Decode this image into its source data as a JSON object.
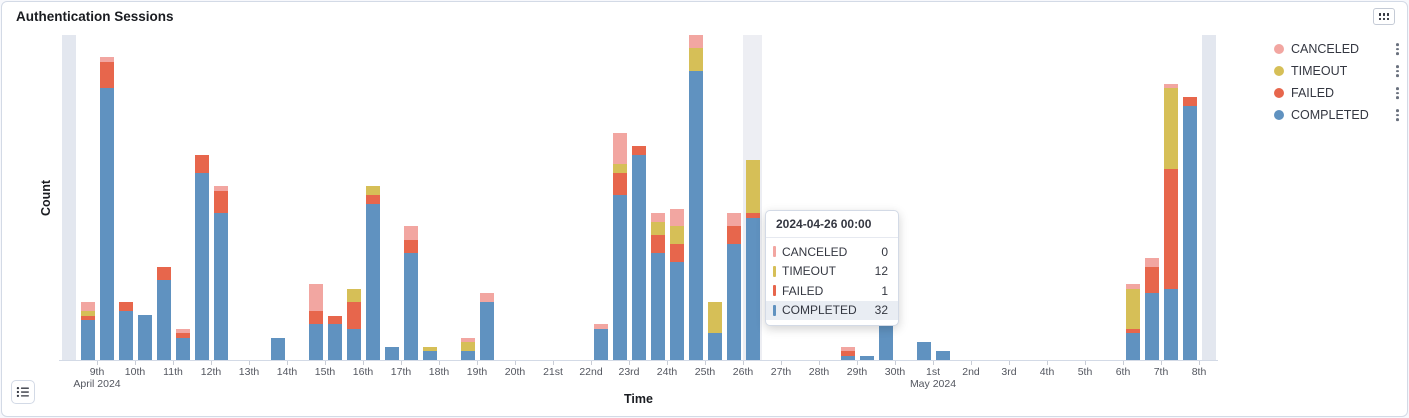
{
  "panel": {
    "title": "Authentication Sessions"
  },
  "chart_data": {
    "type": "bar",
    "stacked": true,
    "title": "Authentication Sessions",
    "xlabel": "Time",
    "ylabel": "Count",
    "ylim": [
      0,
      73
    ],
    "x_bucket_interval": "12h",
    "grid": false,
    "legend_position": "right",
    "stack_order": [
      "COMPLETED",
      "FAILED",
      "TIMEOUT",
      "CANCELED"
    ],
    "colors": {
      "COMPLETED": "#6092C0",
      "FAILED": "#E7664C",
      "TIMEOUT": "#D6BF57",
      "CANCELED": "#F2A6A1",
      "PARTIAL": "#E3E7EF"
    },
    "ticks": [
      {
        "label": "9th",
        "i": 2,
        "sub": "April 2024"
      },
      {
        "label": "10th",
        "i": 4
      },
      {
        "label": "11th",
        "i": 6
      },
      {
        "label": "12th",
        "i": 8
      },
      {
        "label": "13th",
        "i": 10
      },
      {
        "label": "14th",
        "i": 12
      },
      {
        "label": "15th",
        "i": 14
      },
      {
        "label": "16th",
        "i": 16
      },
      {
        "label": "17th",
        "i": 18
      },
      {
        "label": "18th",
        "i": 20
      },
      {
        "label": "19th",
        "i": 22
      },
      {
        "label": "20th",
        "i": 24
      },
      {
        "label": "21st",
        "i": 26
      },
      {
        "label": "22nd",
        "i": 28
      },
      {
        "label": "23rd",
        "i": 30
      },
      {
        "label": "24th",
        "i": 32
      },
      {
        "label": "25th",
        "i": 34
      },
      {
        "label": "26th",
        "i": 36
      },
      {
        "label": "27th",
        "i": 38
      },
      {
        "label": "28th",
        "i": 40
      },
      {
        "label": "29th",
        "i": 42
      },
      {
        "label": "30th",
        "i": 44
      },
      {
        "label": "1st",
        "i": 46,
        "sub": "May 2024"
      },
      {
        "label": "2nd",
        "i": 48
      },
      {
        "label": "3rd",
        "i": 50
      },
      {
        "label": "4th",
        "i": 52
      },
      {
        "label": "5th",
        "i": 54
      },
      {
        "label": "6th",
        "i": 56
      },
      {
        "label": "7th",
        "i": 58
      },
      {
        "label": "8th",
        "i": 60
      }
    ],
    "bars": [
      {
        "b": 0,
        "partial": 73
      },
      {
        "b": 1,
        "v": {
          "COMPLETED": 9,
          "FAILED": 1,
          "TIMEOUT": 1,
          "CANCELED": 2
        }
      },
      {
        "b": 2,
        "v": {
          "COMPLETED": 61,
          "FAILED": 6,
          "CANCELED": 1
        }
      },
      {
        "b": 3,
        "v": {
          "COMPLETED": 11,
          "FAILED": 2
        }
      },
      {
        "b": 4,
        "v": {
          "COMPLETED": 10
        }
      },
      {
        "b": 5,
        "v": {
          "COMPLETED": 18,
          "FAILED": 3
        }
      },
      {
        "b": 6,
        "v": {
          "COMPLETED": 5,
          "FAILED": 1,
          "CANCELED": 1
        }
      },
      {
        "b": 7,
        "v": {
          "COMPLETED": 42,
          "FAILED": 4
        }
      },
      {
        "b": 8,
        "v": {
          "COMPLETED": 33,
          "FAILED": 5,
          "CANCELED": 1
        }
      },
      {
        "b": 11,
        "v": {
          "COMPLETED": 5
        }
      },
      {
        "b": 13,
        "v": {
          "COMPLETED": 8,
          "FAILED": 3,
          "CANCELED": 6
        }
      },
      {
        "b": 14,
        "v": {
          "COMPLETED": 8,
          "FAILED": 2
        }
      },
      {
        "b": 15,
        "v": {
          "COMPLETED": 7,
          "FAILED": 6,
          "TIMEOUT": 3
        }
      },
      {
        "b": 16,
        "v": {
          "COMPLETED": 35,
          "FAILED": 2,
          "TIMEOUT": 2
        }
      },
      {
        "b": 17,
        "v": {
          "COMPLETED": 3
        }
      },
      {
        "b": 18,
        "v": {
          "COMPLETED": 24,
          "FAILED": 3,
          "CANCELED": 3
        }
      },
      {
        "b": 19,
        "v": {
          "COMPLETED": 2,
          "TIMEOUT": 1
        }
      },
      {
        "b": 21,
        "v": {
          "COMPLETED": 2,
          "TIMEOUT": 2,
          "CANCELED": 1
        }
      },
      {
        "b": 22,
        "v": {
          "COMPLETED": 13,
          "CANCELED": 2
        }
      },
      {
        "b": 28,
        "v": {
          "COMPLETED": 7,
          "CANCELED": 1
        }
      },
      {
        "b": 29,
        "v": {
          "COMPLETED": 37,
          "FAILED": 5,
          "TIMEOUT": 2,
          "CANCELED": 7
        }
      },
      {
        "b": 30,
        "v": {
          "COMPLETED": 46,
          "FAILED": 2
        }
      },
      {
        "b": 31,
        "v": {
          "COMPLETED": 24,
          "FAILED": 4,
          "TIMEOUT": 3,
          "CANCELED": 2
        }
      },
      {
        "b": 32,
        "v": {
          "COMPLETED": 22,
          "FAILED": 4,
          "TIMEOUT": 4,
          "CANCELED": 4
        }
      },
      {
        "b": 33,
        "v": {
          "COMPLETED": 65,
          "TIMEOUT": 5,
          "CANCELED": 3
        }
      },
      {
        "b": 34,
        "v": {
          "COMPLETED": 6,
          "TIMEOUT": 7
        }
      },
      {
        "b": 35,
        "v": {
          "COMPLETED": 26,
          "FAILED": 4,
          "CANCELED": 3
        }
      },
      {
        "b": 36,
        "v": {
          "COMPLETED": 32,
          "FAILED": 1,
          "TIMEOUT": 12,
          "CANCELED": 0
        },
        "hovered": true
      },
      {
        "b": 41,
        "v": {
          "COMPLETED": 1,
          "FAILED": 1,
          "CANCELED": 1
        }
      },
      {
        "b": 42,
        "v": {
          "COMPLETED": 1
        }
      },
      {
        "b": 43,
        "v": {
          "COMPLETED": 9,
          "FAILED": 1
        }
      },
      {
        "b": 45,
        "v": {
          "COMPLETED": 4
        }
      },
      {
        "b": 46,
        "v": {
          "COMPLETED": 2
        }
      },
      {
        "b": 56,
        "v": {
          "COMPLETED": 6,
          "FAILED": 1,
          "TIMEOUT": 9,
          "CANCELED": 1
        }
      },
      {
        "b": 57,
        "v": {
          "COMPLETED": 15,
          "FAILED": 6,
          "CANCELED": 2
        }
      },
      {
        "b": 58,
        "v": {
          "COMPLETED": 16,
          "FAILED": 27,
          "TIMEOUT": 18,
          "CANCELED": 1
        }
      },
      {
        "b": 59,
        "v": {
          "COMPLETED": 57,
          "FAILED": 2
        }
      },
      {
        "b": 60,
        "partial": 73
      }
    ],
    "hover": {
      "bucket": 36
    }
  },
  "legend": {
    "items": [
      {
        "key": "CANCELED",
        "label": "CANCELED"
      },
      {
        "key": "TIMEOUT",
        "label": "TIMEOUT"
      },
      {
        "key": "FAILED",
        "label": "FAILED"
      },
      {
        "key": "COMPLETED",
        "label": "COMPLETED"
      }
    ]
  },
  "tooltip": {
    "title": "2024-04-26 00:00",
    "rows": [
      {
        "key": "CANCELED",
        "label": "CANCELED",
        "value": "0",
        "highlight": false
      },
      {
        "key": "TIMEOUT",
        "label": "TIMEOUT",
        "value": "12",
        "highlight": false
      },
      {
        "key": "FAILED",
        "label": "FAILED",
        "value": "1",
        "highlight": false
      },
      {
        "key": "COMPLETED",
        "label": "COMPLETED",
        "value": "32",
        "highlight": true
      }
    ]
  }
}
